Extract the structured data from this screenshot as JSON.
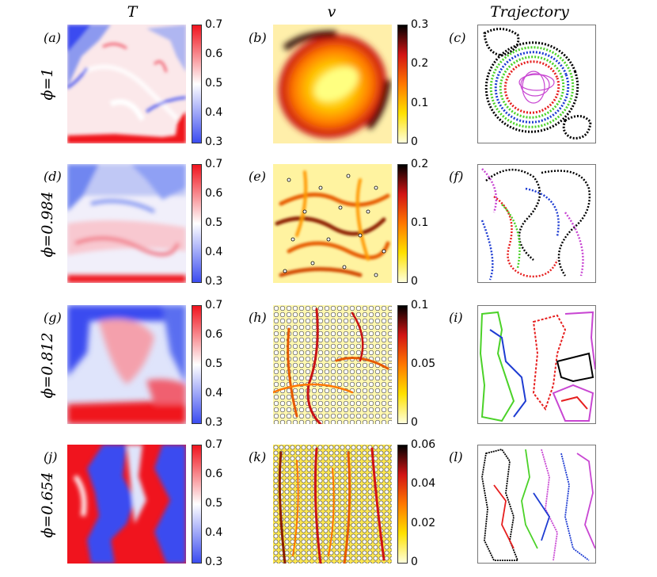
{
  "columns": {
    "temperature": "T",
    "velocity": "v",
    "trajectory": "Trajectory"
  },
  "rows": [
    {
      "phi": "ϕ=1",
      "labels": [
        "(a)",
        "(b)",
        "(c)"
      ],
      "temp_ticks": [
        "0.7",
        "0.6",
        "0.5",
        "0.4",
        "0.3"
      ],
      "vel_ticks": [
        "0.3",
        "0.2",
        "0.1",
        "0"
      ]
    },
    {
      "phi": "ϕ=0.984",
      "labels": [
        "(d)",
        "(e)",
        "(f)"
      ],
      "temp_ticks": [
        "0.7",
        "0.6",
        "0.5",
        "0.4",
        "0.3"
      ],
      "vel_ticks": [
        "0.2",
        "0.1",
        "0"
      ]
    },
    {
      "phi": "ϕ=0.812",
      "labels": [
        "(g)",
        "(h)",
        "(i)"
      ],
      "temp_ticks": [
        "0.7",
        "0.6",
        "0.5",
        "0.4",
        "0.3"
      ],
      "vel_ticks": [
        "0.1",
        "0.05",
        "0"
      ]
    },
    {
      "phi": "ϕ=0.654",
      "labels": [
        "(j)",
        "(k)",
        "(l)"
      ],
      "temp_ticks": [
        "0.7",
        "0.6",
        "0.5",
        "0.4",
        "0.3"
      ],
      "vel_ticks": [
        "0.06",
        "0.04",
        "0.02",
        "0"
      ]
    }
  ],
  "colors": {
    "cold": "#3b4cf0",
    "hot": "#f0141e",
    "mid": "#ffffff",
    "vel_low": "#ffffdc",
    "vel_mid": "#ffe100",
    "vel_high1": "#ff7800",
    "vel_high2": "#d21414",
    "vel_max": "#000000",
    "traj": [
      "#000000",
      "#1e3cd2",
      "#4bd228",
      "#e61e1e",
      "#c846d2"
    ]
  }
}
